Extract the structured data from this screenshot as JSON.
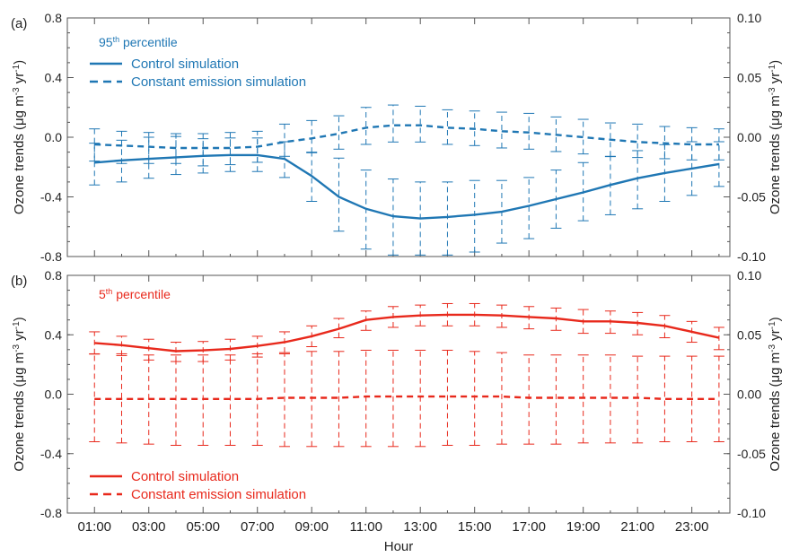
{
  "chart_data": [
    {
      "type": "line",
      "panel_label": "(a)",
      "legend_title": {
        "text": "95",
        "sup": "th",
        "rest": " percentile"
      },
      "color": "#1f77b4",
      "xlabel": "",
      "ylabel_left": [
        "Ozone trends (μg m",
        "-3",
        " yr",
        "-1",
        ")"
      ],
      "ylabel_right": [
        "Ozone trends (μg m",
        "-3",
        " yr",
        "-1",
        ")"
      ],
      "ylim_left": [
        -0.8,
        0.8
      ],
      "yticks_left": [
        "-0.8",
        "-0.4",
        "0.0",
        "0.4",
        "0.8"
      ],
      "ylim_right": [
        -0.1,
        0.1
      ],
      "yticks_right": [
        "-0.10",
        "-0.05",
        "0.00",
        "0.05",
        "0.10"
      ],
      "legend_placement": "top-left",
      "series": [
        {
          "name": "Control simulation",
          "axis": "left",
          "style": "solid",
          "values": [
            -0.17,
            -0.155,
            -0.145,
            -0.135,
            -0.125,
            -0.12,
            -0.12,
            -0.145,
            -0.26,
            -0.4,
            -0.48,
            -0.53,
            -0.545,
            -0.535,
            -0.52,
            -0.5,
            -0.46,
            -0.415,
            -0.37,
            -0.32,
            -0.275,
            -0.24,
            -0.21,
            -0.18
          ],
          "error_low": [
            -0.32,
            -0.3,
            -0.275,
            -0.25,
            -0.24,
            -0.23,
            -0.23,
            -0.27,
            -0.43,
            -0.63,
            -0.75,
            -0.79,
            -0.79,
            -0.79,
            -0.77,
            -0.71,
            -0.68,
            -0.61,
            -0.56,
            -0.52,
            -0.48,
            -0.43,
            -0.39,
            -0.33
          ],
          "error_high": [
            -0.04,
            -0.02,
            0.0,
            0.005,
            -0.01,
            -0.005,
            -0.005,
            -0.03,
            -0.1,
            -0.14,
            -0.22,
            -0.28,
            -0.3,
            -0.3,
            -0.29,
            -0.29,
            -0.27,
            -0.22,
            -0.17,
            -0.13,
            -0.09,
            -0.05,
            -0.03,
            -0.03
          ]
        },
        {
          "name": "Constant emission simulation",
          "axis": "right",
          "style": "dashed",
          "values": [
            -0.006,
            -0.007,
            -0.008,
            -0.009,
            -0.009,
            -0.009,
            -0.008,
            -0.004,
            -0.001,
            0.003,
            0.008,
            0.01,
            0.01,
            0.008,
            0.007,
            0.005,
            0.004,
            0.002,
            0.0,
            -0.002,
            -0.004,
            -0.005,
            -0.006,
            -0.006
          ],
          "error_low": [
            -0.02,
            -0.022,
            -0.022,
            -0.022,
            -0.024,
            -0.023,
            -0.021,
            -0.016,
            -0.013,
            -0.01,
            -0.006,
            -0.004,
            -0.004,
            -0.006,
            -0.007,
            -0.009,
            -0.01,
            -0.012,
            -0.014,
            -0.016,
            -0.017,
            -0.018,
            -0.019,
            -0.019
          ],
          "error_high": [
            0.007,
            0.005,
            0.004,
            0.003,
            0.003,
            0.004,
            0.005,
            0.011,
            0.014,
            0.018,
            0.025,
            0.027,
            0.026,
            0.023,
            0.022,
            0.021,
            0.02,
            0.017,
            0.015,
            0.012,
            0.011,
            0.009,
            0.008,
            0.007
          ]
        }
      ]
    },
    {
      "type": "line",
      "panel_label": "(b)",
      "legend_title": {
        "text": "5",
        "sup": "th",
        "rest": " percentile"
      },
      "color": "#e8291c",
      "xlabel": "Hour",
      "ylabel_left": [
        "Ozone trends (μg m",
        "-3",
        " yr",
        "-1",
        ")"
      ],
      "ylabel_right": [
        "Ozone trends (μg m",
        "-3",
        " yr",
        "-1",
        ")"
      ],
      "ylim_left": [
        -0.8,
        0.8
      ],
      "yticks_left": [
        "-0.8",
        "-0.4",
        "0.0",
        "0.4",
        "0.8"
      ],
      "ylim_right": [
        -0.1,
        0.1
      ],
      "yticks_right": [
        "-0.10",
        "-0.05",
        "0.00",
        "0.05",
        "0.10"
      ],
      "legend_placement": "bottom-left",
      "series": [
        {
          "name": "Control simulation",
          "axis": "left",
          "style": "solid",
          "values": [
            0.345,
            0.33,
            0.31,
            0.29,
            0.295,
            0.305,
            0.325,
            0.35,
            0.39,
            0.44,
            0.5,
            0.52,
            0.53,
            0.535,
            0.535,
            0.53,
            0.52,
            0.51,
            0.49,
            0.49,
            0.48,
            0.46,
            0.42,
            0.38
          ],
          "error_low": [
            0.27,
            0.26,
            0.23,
            0.22,
            0.22,
            0.23,
            0.25,
            0.28,
            0.32,
            0.38,
            0.43,
            0.45,
            0.46,
            0.46,
            0.46,
            0.45,
            0.44,
            0.43,
            0.41,
            0.41,
            0.4,
            0.38,
            0.35,
            0.3
          ],
          "error_high": [
            0.42,
            0.39,
            0.37,
            0.35,
            0.355,
            0.37,
            0.39,
            0.42,
            0.46,
            0.51,
            0.56,
            0.59,
            0.6,
            0.61,
            0.61,
            0.6,
            0.59,
            0.58,
            0.57,
            0.56,
            0.55,
            0.53,
            0.49,
            0.45
          ]
        },
        {
          "name": "Constant emission simulation",
          "axis": "right",
          "style": "dashed",
          "values": [
            -0.004,
            -0.004,
            -0.004,
            -0.004,
            -0.004,
            -0.004,
            -0.004,
            -0.003,
            -0.003,
            -0.003,
            -0.002,
            -0.002,
            -0.002,
            -0.002,
            -0.002,
            -0.002,
            -0.003,
            -0.003,
            -0.003,
            -0.003,
            -0.003,
            -0.004,
            -0.004,
            -0.004
          ],
          "error_low": [
            -0.04,
            -0.041,
            -0.042,
            -0.043,
            -0.043,
            -0.043,
            -0.043,
            -0.044,
            -0.044,
            -0.044,
            -0.044,
            -0.044,
            -0.044,
            -0.043,
            -0.043,
            -0.042,
            -0.042,
            -0.042,
            -0.041,
            -0.041,
            -0.041,
            -0.04,
            -0.04,
            -0.04
          ],
          "error_high": [
            0.034,
            0.034,
            0.033,
            0.033,
            0.033,
            0.033,
            0.034,
            0.034,
            0.036,
            0.036,
            0.037,
            0.037,
            0.037,
            0.037,
            0.036,
            0.035,
            0.033,
            0.033,
            0.033,
            0.033,
            0.032,
            0.032,
            0.032,
            0.032
          ]
        }
      ]
    }
  ],
  "x_axis": {
    "hours": [
      1.5,
      2.5,
      3.5,
      4.5,
      5.5,
      6.5,
      7.5,
      8.5,
      9.5,
      10.5,
      11.5,
      12.5,
      13.5,
      14.5,
      15.5,
      16.5,
      17.5,
      18.5,
      19.5,
      20.5,
      21.5,
      22.5,
      23.5,
      24.5
    ],
    "xlim": [
      0.5,
      24.9
    ],
    "tick_labels": [
      "01:00",
      "03:00",
      "05:00",
      "07:00",
      "09:00",
      "11:00",
      "13:00",
      "15:00",
      "17:00",
      "19:00",
      "21:00",
      "23:00"
    ],
    "tick_positions": [
      1.5,
      3.5,
      5.5,
      7.5,
      9.5,
      11.5,
      13.5,
      15.5,
      17.5,
      19.5,
      21.5,
      23.5
    ]
  }
}
